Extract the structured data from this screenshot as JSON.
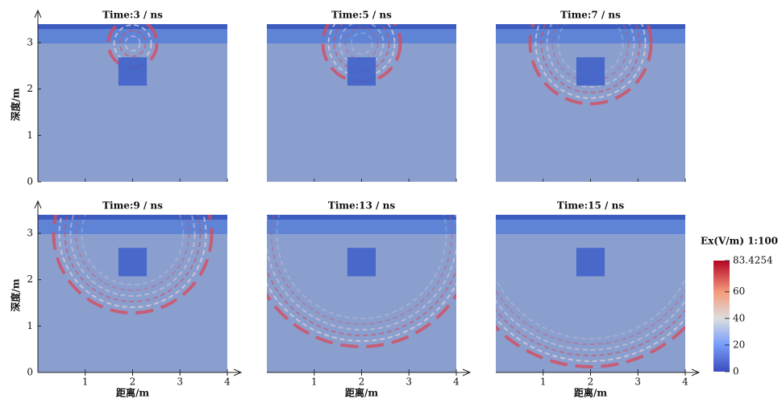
{
  "chart_data": [
    {
      "type": "field",
      "title": "Time:3 / ns",
      "xlim": [
        0,
        4
      ],
      "ylim": [
        0,
        3.4
      ],
      "ylabel": "深度/m",
      "yticks": [
        0,
        1,
        2,
        3
      ]
    },
    {
      "type": "field",
      "title": "Time:5 / ns",
      "xlim": [
        0,
        4
      ],
      "ylim": [
        0,
        3.4
      ]
    },
    {
      "type": "field",
      "title": "Time:7 / ns",
      "xlim": [
        0,
        4
      ],
      "ylim": [
        0,
        3.4
      ]
    },
    {
      "type": "field",
      "title": "Time:9 / ns",
      "xlim": [
        0,
        4
      ],
      "ylim": [
        0,
        3.4
      ],
      "ylabel": "深度/m",
      "yticks": [
        0,
        1,
        2,
        3
      ],
      "xlabel": "距离/m",
      "xticks": [
        1,
        2,
        3,
        4
      ]
    },
    {
      "type": "field",
      "title": "Time:13 / ns",
      "xlim": [
        0,
        4
      ],
      "ylim": [
        0,
        3.4
      ],
      "xlabel": "距离/m",
      "xticks": [
        1,
        2,
        3,
        4
      ]
    },
    {
      "type": "field",
      "title": "Time:15 / ns",
      "xlim": [
        0,
        4
      ],
      "ylim": [
        0,
        3.4
      ],
      "xlabel": "距离/m",
      "xticks": [
        1,
        2,
        3,
        4
      ]
    }
  ],
  "colorbar": {
    "title": "Ex(V/m) 1:100",
    "lim": [
      0,
      83.4254
    ],
    "ticks": [
      0,
      20,
      40,
      60,
      83.4254
    ]
  }
}
